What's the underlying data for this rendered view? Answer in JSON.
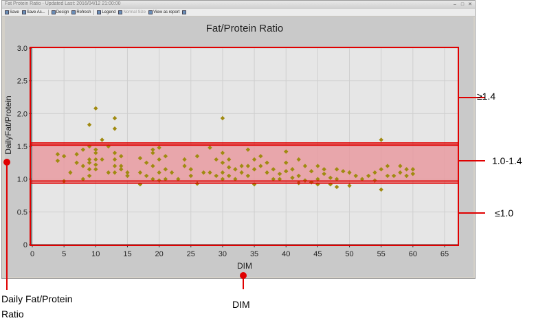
{
  "window": {
    "title": "Fat Protein Ratio - Updated Last: 2016/04/12 21:00:00"
  },
  "toolbar": [
    {
      "label": "Save",
      "icon": "floppy-disk-icon",
      "enabled": true
    },
    {
      "label": "Save As...",
      "icon": "save-as-icon",
      "enabled": true
    },
    {
      "label": "Design",
      "icon": "design-icon",
      "enabled": true
    },
    {
      "label": "Refresh",
      "icon": "refresh-icon",
      "enabled": true
    },
    {
      "label": "Legend",
      "icon": "legend-icon",
      "enabled": true
    },
    {
      "label": "Normal Size",
      "icon": "normal-size-icon",
      "enabled": false
    },
    {
      "label": "View as report",
      "icon": "report-icon",
      "enabled": true
    },
    {
      "label": "",
      "icon": "help-icon",
      "enabled": true
    }
  ],
  "colors": {
    "point": "#a08a10",
    "band": "#e89aa0",
    "highlight": "#e00000",
    "plot_bg": "#e6e6e6"
  },
  "chart_data": {
    "type": "scatter",
    "title": "Fat/Protein Ratio",
    "xlabel": "DIM",
    "ylabel": "DailyFat/Protein",
    "xlim": [
      0,
      67
    ],
    "ylim": [
      0,
      3.0
    ],
    "xticks": [
      "0",
      "5",
      "10",
      "15",
      "20",
      "25",
      "30",
      "35",
      "40",
      "45",
      "50",
      "55",
      "60",
      "65"
    ],
    "yticks": [
      "0",
      "0.5",
      "1.0",
      "1.5",
      "2.0",
      "2.5",
      "3.0"
    ],
    "grid": true,
    "band": [
      1.0,
      1.4
    ],
    "points": [
      [
        4,
        1.38
      ],
      [
        4,
        1.28
      ],
      [
        5,
        1.35
      ],
      [
        5,
        0.97
      ],
      [
        6,
        1.1
      ],
      [
        7,
        1.38
      ],
      [
        7,
        1.25
      ],
      [
        8,
        1.45
      ],
      [
        8,
        1.2
      ],
      [
        8,
        1.0
      ],
      [
        9,
        1.83
      ],
      [
        9,
        1.5
      ],
      [
        9,
        1.3
      ],
      [
        9,
        1.25
      ],
      [
        9,
        1.15
      ],
      [
        9,
        1.05
      ],
      [
        10,
        2.08
      ],
      [
        10,
        1.45
      ],
      [
        10,
        1.4
      ],
      [
        10,
        1.3
      ],
      [
        10,
        1.22
      ],
      [
        10,
        1.15
      ],
      [
        11,
        1.6
      ],
      [
        11,
        1.3
      ],
      [
        12,
        1.5
      ],
      [
        12,
        1.1
      ],
      [
        13,
        1.93
      ],
      [
        13,
        1.77
      ],
      [
        13,
        1.4
      ],
      [
        13,
        1.3
      ],
      [
        13,
        1.2
      ],
      [
        13,
        1.1
      ],
      [
        14,
        1.35
      ],
      [
        14,
        1.2
      ],
      [
        14,
        1.15
      ],
      [
        15,
        1.1
      ],
      [
        15,
        1.05
      ],
      [
        17,
        1.32
      ],
      [
        17,
        1.1
      ],
      [
        17,
        0.92
      ],
      [
        18,
        1.25
      ],
      [
        18,
        1.05
      ],
      [
        19,
        1.45
      ],
      [
        19,
        1.4
      ],
      [
        19,
        1.2
      ],
      [
        19,
        1.0
      ],
      [
        20,
        1.48
      ],
      [
        20,
        1.3
      ],
      [
        20,
        1.1
      ],
      [
        20,
        0.98
      ],
      [
        21,
        1.35
      ],
      [
        21,
        1.15
      ],
      [
        21,
        1.0
      ],
      [
        22,
        1.1
      ],
      [
        23,
        1.0
      ],
      [
        24,
        1.3
      ],
      [
        24,
        1.2
      ],
      [
        25,
        1.15
      ],
      [
        25,
        1.05
      ],
      [
        26,
        1.35
      ],
      [
        26,
        0.93
      ],
      [
        27,
        1.1
      ],
      [
        28,
        1.48
      ],
      [
        28,
        1.1
      ],
      [
        29,
        1.3
      ],
      [
        29,
        1.05
      ],
      [
        30,
        1.93
      ],
      [
        30,
        1.4
      ],
      [
        30,
        1.25
      ],
      [
        30,
        1.1
      ],
      [
        30,
        1.0
      ],
      [
        31,
        1.3
      ],
      [
        31,
        1.18
      ],
      [
        31,
        1.05
      ],
      [
        32,
        1.15
      ],
      [
        32,
        1.0
      ],
      [
        33,
        1.2
      ],
      [
        33,
        1.1
      ],
      [
        34,
        1.45
      ],
      [
        34,
        1.2
      ],
      [
        34,
        1.05
      ],
      [
        35,
        1.3
      ],
      [
        35,
        1.15
      ],
      [
        35,
        0.92
      ],
      [
        36,
        1.35
      ],
      [
        36,
        1.2
      ],
      [
        37,
        1.25
      ],
      [
        37,
        1.1
      ],
      [
        38,
        1.15
      ],
      [
        38,
        1.0
      ],
      [
        39,
        1.08
      ],
      [
        39,
        1.0
      ],
      [
        40,
        1.42
      ],
      [
        40,
        1.25
      ],
      [
        40,
        1.12
      ],
      [
        41,
        1.15
      ],
      [
        41,
        1.02
      ],
      [
        42,
        1.3
      ],
      [
        42,
        1.05
      ],
      [
        42,
        0.94
      ],
      [
        43,
        1.2
      ],
      [
        43,
        0.98
      ],
      [
        44,
        1.12
      ],
      [
        44,
        0.95
      ],
      [
        45,
        1.2
      ],
      [
        45,
        1.0
      ],
      [
        45,
        0.92
      ],
      [
        46,
        1.15
      ],
      [
        46,
        1.08
      ],
      [
        47,
        1.02
      ],
      [
        47,
        0.92
      ],
      [
        48,
        1.15
      ],
      [
        48,
        1.0
      ],
      [
        48,
        0.88
      ],
      [
        49,
        1.12
      ],
      [
        50,
        1.1
      ],
      [
        50,
        0.9
      ],
      [
        51,
        1.05
      ],
      [
        52,
        1.0
      ],
      [
        53,
        1.05
      ],
      [
        54,
        1.1
      ],
      [
        54,
        0.98
      ],
      [
        55,
        1.6
      ],
      [
        55,
        1.15
      ],
      [
        55,
        0.84
      ],
      [
        56,
        1.2
      ],
      [
        56,
        1.05
      ],
      [
        57,
        1.05
      ],
      [
        58,
        1.2
      ],
      [
        58,
        1.1
      ],
      [
        59,
        1.15
      ],
      [
        59,
        1.05
      ],
      [
        60,
        1.15
      ],
      [
        60,
        1.08
      ]
    ]
  },
  "annotations": {
    "high": "≥1.4",
    "mid": "1.0-1.4",
    "low": "≤1.0",
    "y_axis_callout_line1": "Daily Fat/Protein",
    "y_axis_callout_line2": "Ratio",
    "x_axis_callout": "DIM"
  }
}
